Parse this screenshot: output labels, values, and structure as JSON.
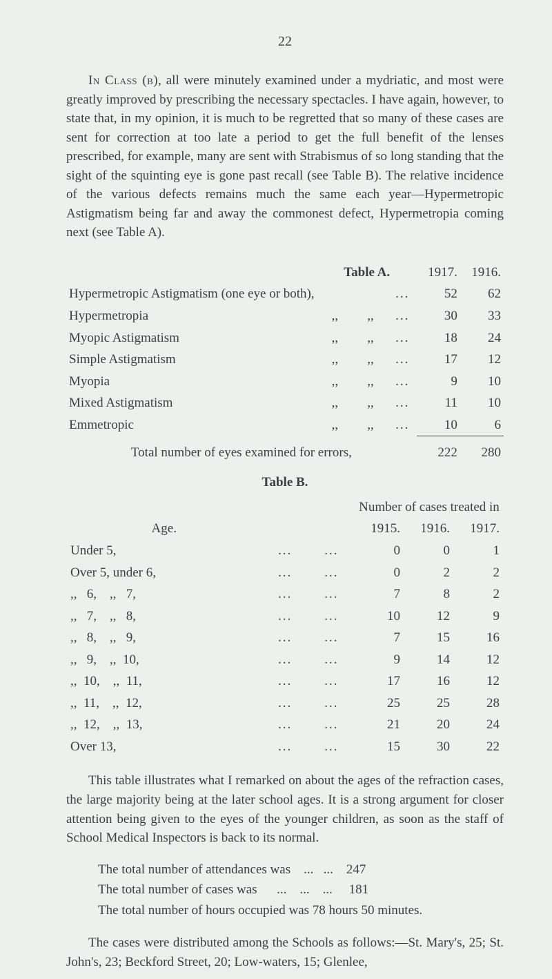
{
  "page_number": "22",
  "para1_lead": "In Class (b)",
  "para1_rest": ", all were minutely examined under a mydriatic, and most were greatly improved by prescribing the necessary spectacles. I have again, however, to state that, in my opinion, it is much to be regretted that so many of these cases are sent for correction at too late a period to get the full benefit of the lenses prescribed, for example, many are sent with Strabismus of so long standing that the sight of the squinting eye is gone past recall (see Table B). The relative incidence of the various defects remains much the same each year—Hypermetropic Astigmatism being far and away the commonest defect, Hypermetropia coming next (see Table A).",
  "tableA_title": "Table A.",
  "tableA_y1": "1917.",
  "tableA_y2": "1916.",
  "tableA_rows": [
    {
      "label": "Hypermetropic Astigmatism (one eye or both),",
      "d1": "",
      "d2": "",
      "v1": "52",
      "v2": "62"
    },
    {
      "label": "Hypermetropia",
      "d1": ",,",
      "d2": ",,",
      "v1": "30",
      "v2": "33"
    },
    {
      "label": "Myopic Astigmatism",
      "d1": ",,",
      "d2": ",,",
      "v1": "18",
      "v2": "24"
    },
    {
      "label": "Simple Astigmatism",
      "d1": ",,",
      "d2": ",,",
      "v1": "17",
      "v2": "12"
    },
    {
      "label": "Myopia",
      "d1": ",,",
      "d2": ",,",
      "v1": "9",
      "v2": "10"
    },
    {
      "label": "Mixed Astigmatism",
      "d1": ",,",
      "d2": ",,",
      "v1": "11",
      "v2": "10"
    },
    {
      "label": "Emmetropic",
      "d1": ",,",
      "d2": ",,",
      "v1": "10",
      "v2": "6"
    }
  ],
  "tableA_total_label": "Total number of eyes examined for errors,",
  "tableA_total_v1": "222",
  "tableA_total_v2": "280",
  "tableB_title": "Table B.",
  "tableB_header": "Number of cases treated in",
  "tableB_age": "Age.",
  "tableB_y1": "1915.",
  "tableB_y2": "1916.",
  "tableB_y3": "1917.",
  "tableB_rows": [
    {
      "label": "Under 5,",
      "v1": "0",
      "v2": "0",
      "v3": "1"
    },
    {
      "label": "Over 5, under 6,",
      "v1": "0",
      "v2": "2",
      "v3": "2"
    },
    {
      "label": ",,   6,    ,,   7,",
      "v1": "7",
      "v2": "8",
      "v3": "2"
    },
    {
      "label": ",,   7,    ,,   8,",
      "v1": "10",
      "v2": "12",
      "v3": "9"
    },
    {
      "label": ",,   8,    ,,   9,",
      "v1": "7",
      "v2": "15",
      "v3": "16"
    },
    {
      "label": ",,   9,    ,,  10,",
      "v1": "9",
      "v2": "14",
      "v3": "12"
    },
    {
      "label": ",,  10,    ,,  11,",
      "v1": "17",
      "v2": "16",
      "v3": "12"
    },
    {
      "label": ",,  11,    ,,  12,",
      "v1": "25",
      "v2": "25",
      "v3": "28"
    },
    {
      "label": ",,  12,    ,,  13,",
      "v1": "21",
      "v2": "20",
      "v3": "24"
    },
    {
      "label": "Over 13,",
      "v1": "15",
      "v2": "30",
      "v3": "22"
    }
  ],
  "para2": "This table illustrates what I remarked on about the ages of the refraction cases, the large majority being at the later school ages. It is a strong argument for closer attention being given to the eyes of the younger children, as soon as the staff of School Medical Inspectors is back to its normal.",
  "line1_label": "The total number of attendances was",
  "line1_val": "247",
  "line2_label": "The total number of cases was",
  "line2_val": "181",
  "line3": "The total number of hours occupied was 78 hours 50 minutes.",
  "para3": "The cases were distributed among the Schools as follows:—St. Mary's, 25; St. John's, 23; Beckford Street, 20; Low-waters, 15; Glenlee,"
}
